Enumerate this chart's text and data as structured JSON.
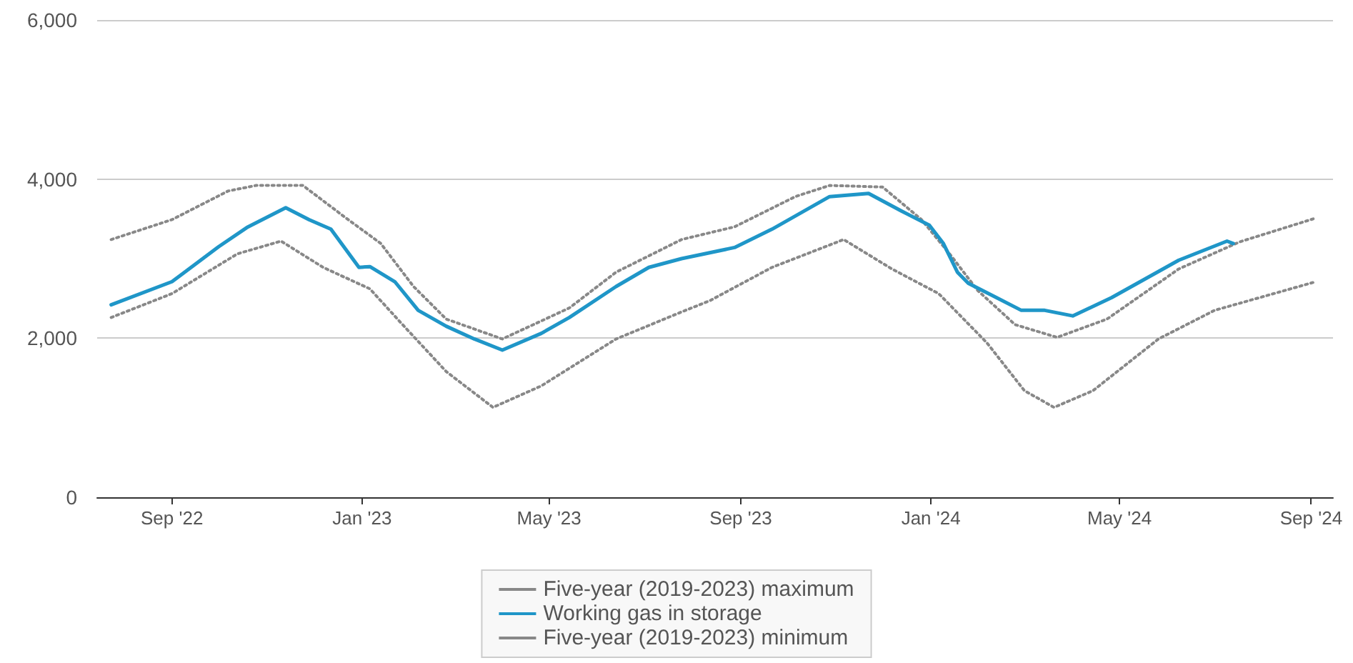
{
  "chart_data": {
    "type": "line",
    "xlim": [
      "2022-07-15",
      "2024-09-15"
    ],
    "xticks": [
      {
        "value": "2022-09-01",
        "label": "Sep '22"
      },
      {
        "value": "2023-01-01",
        "label": "Jan '23"
      },
      {
        "value": "2023-05-01",
        "label": "May '23"
      },
      {
        "value": "2023-09-01",
        "label": "Sep '23"
      },
      {
        "value": "2024-01-01",
        "label": "Jan '24"
      },
      {
        "value": "2024-05-01",
        "label": "May '24"
      },
      {
        "value": "2024-09-01",
        "label": "Sep '24"
      }
    ],
    "ylim": [
      0,
      6000
    ],
    "yticks": [
      {
        "value": 0,
        "label": "0"
      },
      {
        "value": 2000,
        "label": "2,000"
      },
      {
        "value": 4000,
        "label": "4,000"
      },
      {
        "value": 6000,
        "label": "6,000"
      }
    ],
    "grid": "y",
    "legend": "bottom",
    "marker": "none",
    "series": [
      {
        "name": "Five-year (2019-2023) maximum",
        "color": "#888888",
        "line_style": "dotted",
        "x": [
          "2022-07-24",
          "2022-09-01",
          "2022-10-07",
          "2022-10-25",
          "2022-11-24",
          "2022-12-19",
          "2023-01-13",
          "2023-02-03",
          "2023-02-24",
          "2023-04-01",
          "2023-05-14",
          "2023-06-13",
          "2023-07-25",
          "2023-08-28",
          "2023-10-06",
          "2023-10-28",
          "2023-12-01",
          "2023-12-26",
          "2024-01-13",
          "2024-01-31",
          "2024-02-24",
          "2024-03-22",
          "2024-04-23",
          "2024-06-08",
          "2024-07-17",
          "2024-09-04"
        ],
        "values": [
          3240,
          3490,
          3850,
          3920,
          3920,
          3550,
          3190,
          2650,
          2240,
          1990,
          2380,
          2830,
          3240,
          3400,
          3780,
          3920,
          3900,
          3490,
          3060,
          2600,
          2170,
          2010,
          2240,
          2870,
          3210,
          3510
        ]
      },
      {
        "name": "Working gas in storage",
        "color": "#1f96c8",
        "line_style": "solid",
        "x": [
          "2022-07-24",
          "2022-09-01",
          "2022-10-01",
          "2022-10-19",
          "2022-11-13",
          "2022-11-28",
          "2022-12-12",
          "2022-12-30",
          "2023-01-06",
          "2023-01-22",
          "2023-02-06",
          "2023-02-24",
          "2023-03-14",
          "2023-04-01",
          "2023-04-26",
          "2023-05-14",
          "2023-06-13",
          "2023-07-04",
          "2023-07-25",
          "2023-08-28",
          "2023-09-21",
          "2023-10-28",
          "2023-11-22",
          "2023-12-13",
          "2023-12-31",
          "2024-01-09",
          "2024-01-18",
          "2024-01-25",
          "2024-02-12",
          "2024-02-28",
          "2024-03-14",
          "2024-04-01",
          "2024-04-26",
          "2024-06-08",
          "2024-07-09",
          "2024-07-13"
        ],
        "values": [
          2420,
          2710,
          3150,
          3390,
          3640,
          3490,
          3370,
          2890,
          2900,
          2710,
          2350,
          2150,
          1990,
          1850,
          2060,
          2260,
          2650,
          2890,
          3000,
          3140,
          3370,
          3780,
          3820,
          3600,
          3420,
          3190,
          2830,
          2690,
          2510,
          2350,
          2350,
          2280,
          2510,
          2980,
          3220,
          3190
        ]
      },
      {
        "name": "Five-year (2019-2023) minimum",
        "color": "#888888",
        "line_style": "dotted",
        "x": [
          "2022-07-24",
          "2022-09-01",
          "2022-10-13",
          "2022-11-10",
          "2022-12-07",
          "2023-01-06",
          "2023-01-27",
          "2023-02-24",
          "2023-03-26",
          "2023-04-26",
          "2023-06-13",
          "2023-07-25",
          "2023-08-12",
          "2023-09-21",
          "2023-11-06",
          "2023-12-07",
          "2024-01-06",
          "2024-02-06",
          "2024-03-01",
          "2024-03-20",
          "2024-04-14",
          "2024-05-26",
          "2024-07-01",
          "2024-09-04"
        ],
        "values": [
          2260,
          2560,
          3060,
          3220,
          2890,
          2620,
          2170,
          1580,
          1130,
          1400,
          1990,
          2330,
          2470,
          2890,
          3240,
          2870,
          2560,
          1940,
          1340,
          1130,
          1340,
          1990,
          2350,
          2710
        ]
      }
    ]
  }
}
